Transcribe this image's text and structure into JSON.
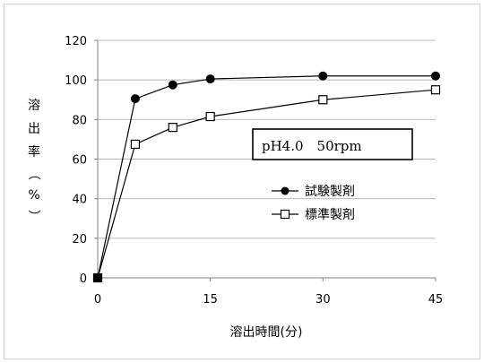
{
  "chart_data": {
    "type": "line",
    "title": "",
    "xlabel": "溶出時間(分)",
    "ylabel_chars": [
      "溶",
      "出",
      "率",
      "（",
      "%",
      "）"
    ],
    "x_ticks": [
      0,
      15,
      30,
      45
    ],
    "y_ticks": [
      0,
      20,
      40,
      60,
      80,
      100,
      120
    ],
    "xlim": [
      0,
      45
    ],
    "ylim": [
      0,
      120
    ],
    "annotation": "pH4.0　50rpm",
    "legend_position": "right",
    "series": [
      {
        "name": "試験製剤",
        "marker": "filled-circle",
        "color": "#000000",
        "x": [
          0,
          5,
          10,
          15,
          30,
          45
        ],
        "y": [
          0,
          90.5,
          97.5,
          100.5,
          102,
          102
        ]
      },
      {
        "name": "標準製剤",
        "marker": "open-square",
        "color": "#000000",
        "x": [
          0,
          5,
          10,
          15,
          30,
          45
        ],
        "y": [
          0,
          67.5,
          76,
          81.5,
          90,
          95
        ]
      }
    ]
  }
}
